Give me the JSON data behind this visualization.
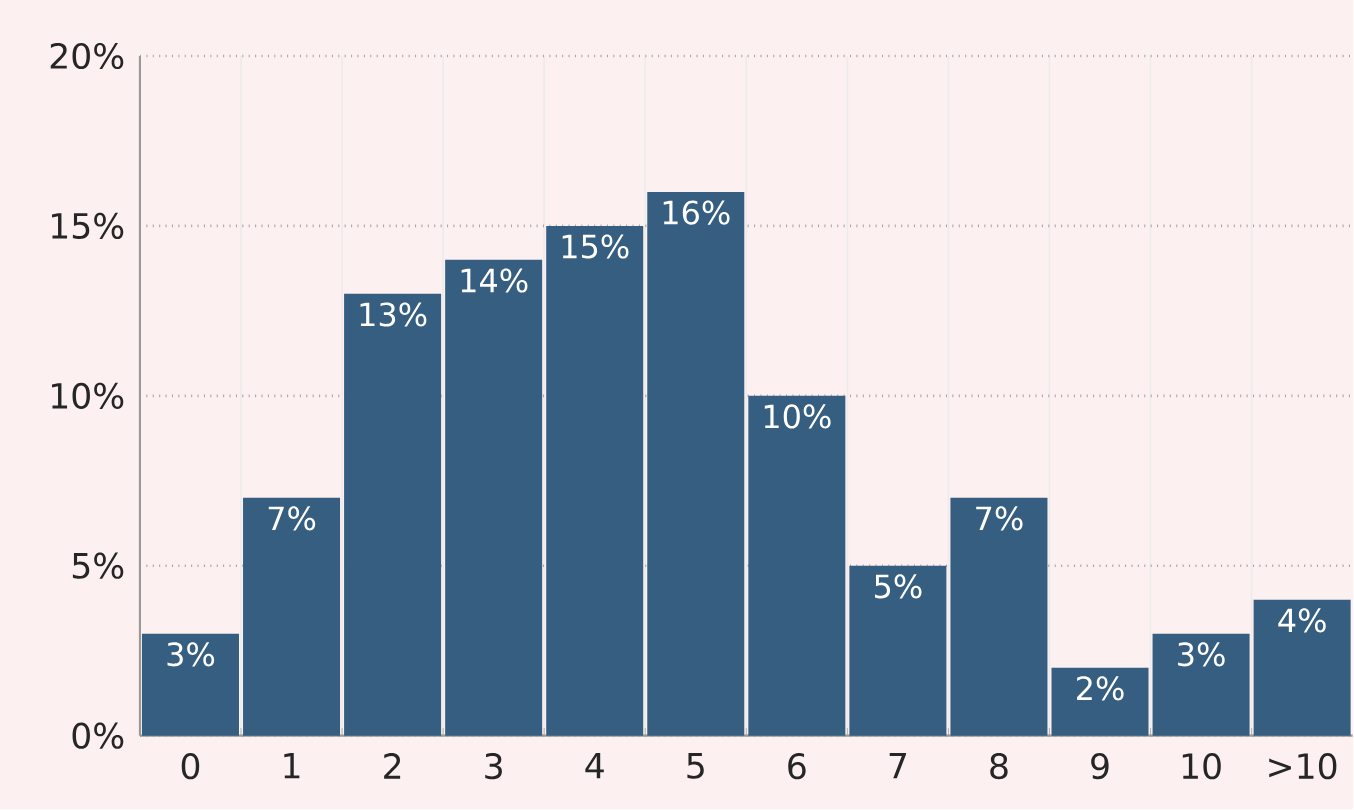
{
  "chart_data": {
    "type": "bar",
    "categories": [
      "0",
      "1",
      "2",
      "3",
      "4",
      "5",
      "6",
      "7",
      "8",
      "9",
      "10",
      ">10"
    ],
    "values": [
      3,
      7,
      13,
      14,
      15,
      16,
      10,
      5,
      7,
      2,
      3,
      4
    ],
    "value_labels": [
      "3%",
      "7%",
      "13%",
      "14%",
      "15%",
      "16%",
      "10%",
      "5%",
      "7%",
      "2%",
      "3%",
      "4%"
    ],
    "color": "#365e80",
    "ylim": [
      0,
      20
    ],
    "yticks": [
      {
        "value": 0,
        "label": "0%"
      },
      {
        "value": 5,
        "label": "5%"
      },
      {
        "value": 10,
        "label": "10%"
      },
      {
        "value": 15,
        "label": "15%"
      },
      {
        "value": 20,
        "label": "20%"
      }
    ],
    "grid": true
  }
}
